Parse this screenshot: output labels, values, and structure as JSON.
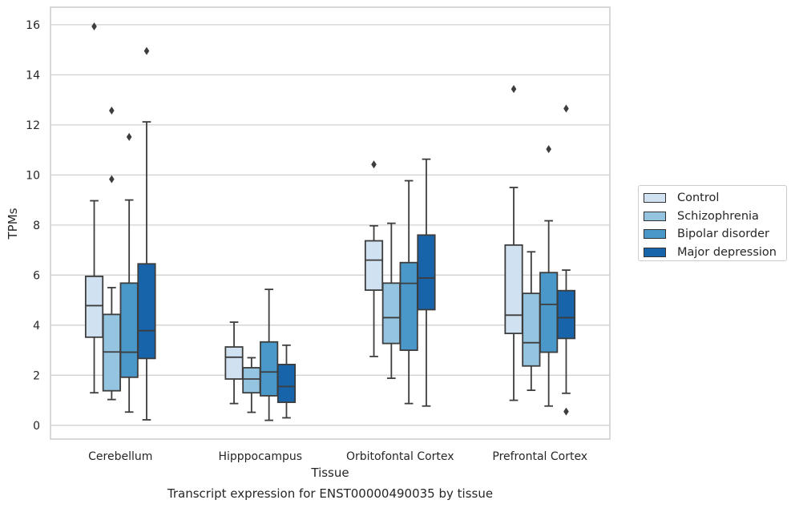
{
  "chart_data": {
    "type": "box",
    "title": "Transcript expression for ENST00000490035 by tissue",
    "xlabel": "Tissue",
    "ylabel": "TPMs",
    "ylim": [
      -0.55,
      16.7
    ],
    "yticks": [
      0,
      2,
      4,
      6,
      8,
      10,
      12,
      14,
      16
    ],
    "grid": true,
    "legend_position": "right",
    "categories": [
      "Cerebellum",
      "Hipppocampus",
      "Orbitofontal Cortex",
      "Prefrontal Cortex"
    ],
    "series": [
      {
        "name": "Control",
        "color": "#d0e1f2",
        "boxes": [
          {
            "whislo": 1.3,
            "q1": 3.52,
            "med": 4.78,
            "q3": 5.95,
            "whishi": 8.97,
            "fliers": [
              15.93
            ]
          },
          {
            "whislo": 0.87,
            "q1": 1.85,
            "med": 2.72,
            "q3": 3.13,
            "whishi": 4.12,
            "fliers": []
          },
          {
            "whislo": 2.75,
            "q1": 5.4,
            "med": 6.6,
            "q3": 7.37,
            "whishi": 7.97,
            "fliers": [
              10.42
            ]
          },
          {
            "whislo": 1.0,
            "q1": 3.67,
            "med": 4.4,
            "q3": 7.2,
            "whishi": 9.5,
            "fliers": [
              13.43
            ]
          }
        ]
      },
      {
        "name": "Schizophrenia",
        "color": "#94c4df",
        "boxes": [
          {
            "whislo": 1.03,
            "q1": 1.38,
            "med": 2.93,
            "q3": 4.43,
            "whishi": 5.5,
            "fliers": [
              9.83,
              12.57
            ]
          },
          {
            "whislo": 0.52,
            "q1": 1.3,
            "med": 1.85,
            "q3": 2.3,
            "whishi": 2.7,
            "fliers": []
          },
          {
            "whislo": 1.88,
            "q1": 3.27,
            "med": 4.3,
            "q3": 5.68,
            "whishi": 8.07,
            "fliers": []
          },
          {
            "whislo": 1.4,
            "q1": 2.37,
            "med": 3.3,
            "q3": 5.27,
            "whishi": 6.93,
            "fliers": []
          }
        ]
      },
      {
        "name": "Bipolar disorder",
        "color": "#4a98c9",
        "boxes": [
          {
            "whislo": 0.53,
            "q1": 1.92,
            "med": 2.92,
            "q3": 5.68,
            "whishi": 9.0,
            "fliers": [
              11.52
            ]
          },
          {
            "whislo": 0.2,
            "q1": 1.18,
            "med": 2.13,
            "q3": 3.33,
            "whishi": 5.43,
            "fliers": []
          },
          {
            "whislo": 0.87,
            "q1": 3.0,
            "med": 5.67,
            "q3": 6.5,
            "whishi": 9.77,
            "fliers": []
          },
          {
            "whislo": 0.77,
            "q1": 2.92,
            "med": 4.83,
            "q3": 6.1,
            "whishi": 8.17,
            "fliers": [
              11.03
            ]
          }
        ]
      },
      {
        "name": "Major depression",
        "color": "#1764ab",
        "boxes": [
          {
            "whislo": 0.22,
            "q1": 2.67,
            "med": 3.78,
            "q3": 6.45,
            "whishi": 12.12,
            "fliers": [
              14.95
            ]
          },
          {
            "whislo": 0.3,
            "q1": 0.92,
            "med": 1.55,
            "q3": 2.43,
            "whishi": 3.2,
            "fliers": []
          },
          {
            "whislo": 0.77,
            "q1": 4.62,
            "med": 5.88,
            "q3": 7.6,
            "whishi": 10.63,
            "fliers": []
          },
          {
            "whislo": 1.28,
            "q1": 3.47,
            "med": 4.3,
            "q3": 5.38,
            "whishi": 6.2,
            "fliers": [
              0.55,
              12.65
            ]
          }
        ]
      }
    ]
  }
}
